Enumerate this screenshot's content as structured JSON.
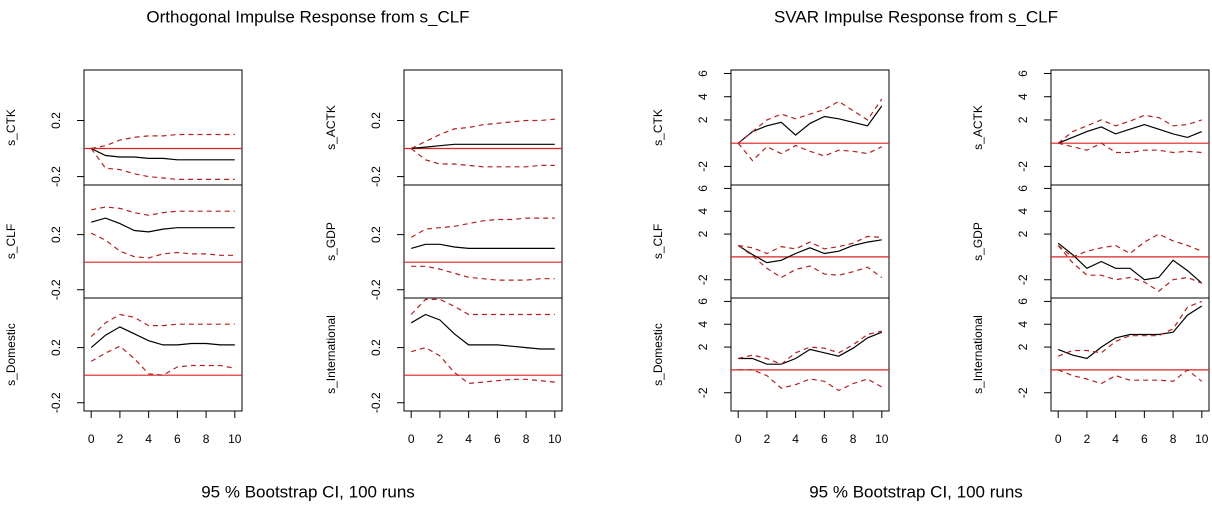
{
  "chart_data": [
    {
      "type": "line",
      "title": "Orthogonal Impulse Response from s_CLF",
      "caption": "95 % Bootstrap CI,  100 runs",
      "x": [
        0,
        1,
        2,
        3,
        4,
        5,
        6,
        7,
        8,
        9,
        10
      ],
      "xlim": [
        -0.5,
        10.5
      ],
      "xticks": [
        0,
        2,
        4,
        6,
        8,
        10
      ],
      "panels": [
        {
          "ylabel": "s_CTK",
          "ylim": [
            -0.26,
            0.56
          ],
          "yticks": [
            -0.2,
            0.2
          ],
          "hline": 0,
          "hline_color": "#dd2222",
          "series": [
            {
              "color": "#000000",
              "linestyle": "solid",
              "values": [
                0,
                -0.05,
                -0.06,
                -0.06,
                -0.07,
                -0.07,
                -0.08,
                -0.08,
                -0.08,
                -0.08,
                -0.08
              ]
            },
            {
              "color": "#b22222",
              "linestyle": "dashed",
              "values": [
                0,
                0.02,
                0.06,
                0.08,
                0.09,
                0.09,
                0.1,
                0.1,
                0.1,
                0.1,
                0.1
              ]
            },
            {
              "color": "#b22222",
              "linestyle": "dashed",
              "values": [
                0,
                -0.14,
                -0.15,
                -0.18,
                -0.2,
                -0.21,
                -0.22,
                -0.22,
                -0.22,
                -0.22,
                -0.22
              ]
            }
          ]
        },
        {
          "ylabel": "s_CLF",
          "ylim": [
            -0.26,
            0.56
          ],
          "yticks": [
            -0.2,
            0.2
          ],
          "hline": 0,
          "hline_color": "#dd2222",
          "series": [
            {
              "color": "#000000",
              "linestyle": "solid",
              "values": [
                0.29,
                0.32,
                0.28,
                0.23,
                0.22,
                0.24,
                0.25,
                0.25,
                0.25,
                0.25,
                0.25
              ]
            },
            {
              "color": "#b22222",
              "linestyle": "dashed",
              "values": [
                0.38,
                0.4,
                0.39,
                0.36,
                0.34,
                0.36,
                0.37,
                0.37,
                0.37,
                0.37,
                0.37
              ]
            },
            {
              "color": "#b22222",
              "linestyle": "dashed",
              "values": [
                0.21,
                0.16,
                0.08,
                0.04,
                0.03,
                0.06,
                0.07,
                0.06,
                0.06,
                0.05,
                0.05
              ]
            }
          ]
        },
        {
          "ylabel": "s_Domestic",
          "ylim": [
            -0.26,
            0.56
          ],
          "yticks": [
            -0.2,
            0.2
          ],
          "hline": 0,
          "hline_color": "#dd2222",
          "series": [
            {
              "color": "#000000",
              "linestyle": "solid",
              "values": [
                0.2,
                0.29,
                0.35,
                0.3,
                0.25,
                0.22,
                0.22,
                0.23,
                0.23,
                0.22,
                0.22
              ]
            },
            {
              "color": "#b22222",
              "linestyle": "dashed",
              "values": [
                0.28,
                0.38,
                0.44,
                0.42,
                0.36,
                0.36,
                0.37,
                0.37,
                0.37,
                0.37,
                0.37
              ]
            },
            {
              "color": "#b22222",
              "linestyle": "dashed",
              "values": [
                0.1,
                0.16,
                0.21,
                0.12,
                0.01,
                0,
                0.06,
                0.07,
                0.07,
                0.07,
                0.05
              ]
            }
          ]
        },
        {
          "ylabel": "s_ACTK",
          "ylim": [
            -0.26,
            0.56
          ],
          "yticks": [
            -0.2,
            0.2
          ],
          "hline": 0,
          "hline_color": "#dd2222",
          "series": [
            {
              "color": "#000000",
              "linestyle": "solid",
              "values": [
                0,
                0.01,
                0.02,
                0.03,
                0.03,
                0.03,
                0.03,
                0.03,
                0.03,
                0.03,
                0.03
              ]
            },
            {
              "color": "#b22222",
              "linestyle": "dashed",
              "values": [
                0,
                0.05,
                0.1,
                0.14,
                0.15,
                0.17,
                0.18,
                0.19,
                0.2,
                0.2,
                0.21
              ]
            },
            {
              "color": "#b22222",
              "linestyle": "dashed",
              "values": [
                0,
                -0.08,
                -0.11,
                -0.11,
                -0.12,
                -0.13,
                -0.13,
                -0.13,
                -0.13,
                -0.12,
                -0.12
              ]
            }
          ]
        },
        {
          "ylabel": "s_GDP",
          "ylim": [
            -0.26,
            0.56
          ],
          "yticks": [
            -0.2,
            0.2
          ],
          "hline": 0,
          "hline_color": "#dd2222",
          "series": [
            {
              "color": "#000000",
              "linestyle": "solid",
              "values": [
                0.1,
                0.13,
                0.13,
                0.11,
                0.1,
                0.1,
                0.1,
                0.1,
                0.1,
                0.1,
                0.1
              ]
            },
            {
              "color": "#b22222",
              "linestyle": "dashed",
              "values": [
                0.18,
                0.24,
                0.25,
                0.26,
                0.28,
                0.3,
                0.31,
                0.31,
                0.32,
                0.32,
                0.32
              ]
            },
            {
              "color": "#b22222",
              "linestyle": "dashed",
              "values": [
                -0.03,
                -0.03,
                -0.05,
                -0.08,
                -0.11,
                -0.12,
                -0.13,
                -0.13,
                -0.13,
                -0.12,
                -0.12
              ]
            }
          ]
        },
        {
          "ylabel": "s_International",
          "ylim": [
            -0.26,
            0.56
          ],
          "yticks": [
            -0.2,
            0.2
          ],
          "hline": 0,
          "hline_color": "#dd2222",
          "series": [
            {
              "color": "#000000",
              "linestyle": "solid",
              "values": [
                0.38,
                0.44,
                0.4,
                0.3,
                0.22,
                0.22,
                0.22,
                0.21,
                0.2,
                0.19,
                0.19
              ]
            },
            {
              "color": "#b22222",
              "linestyle": "dashed",
              "values": [
                0.44,
                0.55,
                0.55,
                0.5,
                0.44,
                0.44,
                0.44,
                0.44,
                0.44,
                0.44,
                0.44
              ]
            },
            {
              "color": "#b22222",
              "linestyle": "dashed",
              "values": [
                0.17,
                0.2,
                0.14,
                0.02,
                -0.06,
                -0.05,
                -0.04,
                -0.03,
                -0.03,
                -0.04,
                -0.05
              ]
            }
          ]
        }
      ]
    },
    {
      "type": "line",
      "title": "SVAR Impulse Response from s_CLF",
      "caption": "95 % Bootstrap CI,  100 runs",
      "x": [
        0,
        1,
        2,
        3,
        4,
        5,
        6,
        7,
        8,
        9,
        10
      ],
      "xlim": [
        -0.5,
        10.5
      ],
      "xticks": [
        0,
        2,
        4,
        6,
        8,
        10
      ],
      "panels": [
        {
          "ylabel": "s_CTK",
          "ylim": [
            -3.6,
            6.3
          ],
          "yticks": [
            -2,
            2,
            4,
            6
          ],
          "hline": 0,
          "hline_color": "#dd2222",
          "series": [
            {
              "color": "#000000",
              "linestyle": "solid",
              "values": [
                0,
                1,
                1.5,
                1.8,
                0.7,
                1.7,
                2.3,
                2.1,
                1.8,
                1.5,
                3.2
              ]
            },
            {
              "color": "#b22222",
              "linestyle": "dashed",
              "values": [
                0,
                1,
                2,
                2.5,
                2.1,
                2.5,
                2.9,
                3.6,
                2.8,
                2,
                3.8
              ]
            },
            {
              "color": "#b22222",
              "linestyle": "dashed",
              "values": [
                0,
                -1.5,
                -0.3,
                -0.9,
                -0.2,
                -0.7,
                -1.1,
                -0.6,
                -0.7,
                -0.9,
                -0.3
              ]
            }
          ]
        },
        {
          "ylabel": "s_CLF",
          "ylim": [
            -3.6,
            6.3
          ],
          "yticks": [
            -2,
            2,
            4,
            6
          ],
          "hline": 0,
          "hline_color": "#dd2222",
          "series": [
            {
              "color": "#000000",
              "linestyle": "solid",
              "values": [
                1,
                0.2,
                -0.5,
                -0.3,
                0.3,
                0.8,
                0.3,
                0.5,
                1,
                1.3,
                1.5
              ]
            },
            {
              "color": "#b22222",
              "linestyle": "dashed",
              "values": [
                1,
                0.8,
                0.3,
                0.9,
                0.7,
                1.3,
                0.7,
                0.9,
                1.2,
                1.8,
                1.7
              ]
            },
            {
              "color": "#b22222",
              "linestyle": "dashed",
              "values": [
                1,
                0.1,
                -1,
                -1.8,
                -1.1,
                -0.8,
                -1.5,
                -1.6,
                -1.3,
                -0.9,
                -1.8
              ]
            }
          ]
        },
        {
          "ylabel": "s_Domestic",
          "ylim": [
            -3.6,
            6.3
          ],
          "yticks": [
            -2,
            2,
            4,
            6
          ],
          "hline": 0,
          "hline_color": "#dd2222",
          "series": [
            {
              "color": "#000000",
              "linestyle": "solid",
              "values": [
                1,
                1,
                0.5,
                0.5,
                1,
                1.8,
                1.5,
                1.2,
                1.9,
                2.8,
                3.3
              ]
            },
            {
              "color": "#b22222",
              "linestyle": "dashed",
              "values": [
                1,
                1.3,
                1,
                0.5,
                1.5,
                2,
                1.9,
                1.5,
                2.2,
                3.1,
                3.4
              ]
            },
            {
              "color": "#b22222",
              "linestyle": "dashed",
              "values": [
                0,
                0,
                -0.5,
                -1.6,
                -1.3,
                -0.8,
                -1,
                -1.8,
                -1.2,
                -0.8,
                -1.5
              ]
            }
          ]
        },
        {
          "ylabel": "s_ACTK",
          "ylim": [
            -3.6,
            6.3
          ],
          "yticks": [
            -2,
            2,
            4,
            6
          ],
          "hline": 0,
          "hline_color": "#dd2222",
          "series": [
            {
              "color": "#000000",
              "linestyle": "solid",
              "values": [
                0,
                0.5,
                1,
                1.4,
                0.8,
                1.2,
                1.6,
                1.2,
                0.8,
                0.5,
                1
              ]
            },
            {
              "color": "#b22222",
              "linestyle": "dashed",
              "values": [
                0,
                1,
                1.5,
                2,
                1.5,
                1.9,
                2.4,
                2.2,
                1.5,
                1.6,
                2
              ]
            },
            {
              "color": "#b22222",
              "linestyle": "dashed",
              "values": [
                0,
                -0.3,
                -0.6,
                0,
                -0.8,
                -0.8,
                -0.6,
                -0.6,
                -0.8,
                -0.7,
                -0.8
              ]
            }
          ]
        },
        {
          "ylabel": "s_GDP",
          "ylim": [
            -3.6,
            6.3
          ],
          "yticks": [
            -2,
            2,
            4,
            6
          ],
          "hline": 0,
          "hline_color": "#dd2222",
          "series": [
            {
              "color": "#000000",
              "linestyle": "solid",
              "values": [
                1.2,
                0.2,
                -1,
                -0.4,
                -1,
                -1,
                -2,
                -1.8,
                -0.3,
                -1.2,
                -2.3
              ]
            },
            {
              "color": "#b22222",
              "linestyle": "dashed",
              "values": [
                1,
                0,
                0.5,
                0.8,
                1,
                0.3,
                1.3,
                2,
                1.4,
                1,
                0.5
              ]
            },
            {
              "color": "#b22222",
              "linestyle": "dashed",
              "values": [
                1,
                -0.5,
                -1.6,
                -1.6,
                -2,
                -1.8,
                -2.2,
                -3,
                -2,
                -1.8,
                -2.3
              ]
            }
          ]
        },
        {
          "ylabel": "s_International",
          "ylim": [
            -3.6,
            6.3
          ],
          "yticks": [
            -2,
            2,
            4,
            6
          ],
          "hline": 0,
          "hline_color": "#dd2222",
          "series": [
            {
              "color": "#000000",
              "linestyle": "solid",
              "values": [
                1.8,
                1.3,
                1,
                2,
                2.8,
                3.1,
                3.1,
                3.1,
                3.3,
                4.8,
                5.6
              ]
            },
            {
              "color": "#b22222",
              "linestyle": "dashed",
              "values": [
                1.2,
                1.7,
                1.7,
                1.5,
                2.5,
                3,
                3,
                3,
                3.6,
                5.5,
                6
              ]
            },
            {
              "color": "#b22222",
              "linestyle": "dashed",
              "values": [
                0,
                -0.5,
                -0.8,
                -1.2,
                -0.5,
                -0.9,
                -0.9,
                -0.9,
                -1,
                0,
                -1
              ]
            }
          ]
        }
      ]
    }
  ]
}
